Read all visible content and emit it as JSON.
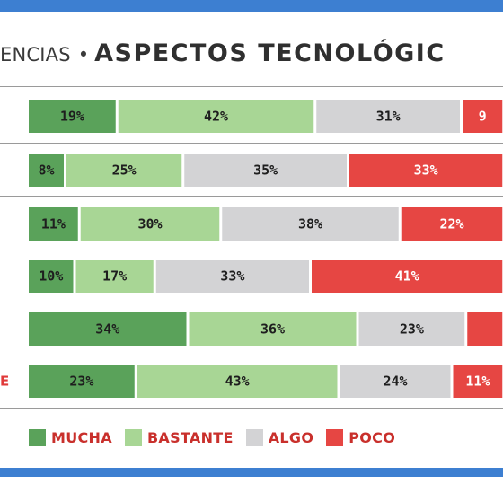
{
  "header": {
    "pre": "ENCIAS",
    "bullet": "•",
    "main": "ASPECTOS TECNOLÓGIC"
  },
  "colors": {
    "frame": "#3d7fd1",
    "mucha": "#5aa25a",
    "bastante": "#a8d695",
    "algo": "#d3d3d5",
    "poco": "#e64643"
  },
  "chart_data": {
    "type": "bar",
    "orientation": "horizontal",
    "stacked": true,
    "grid": false,
    "legend_position": "bottom",
    "categories": [
      "",
      "",
      "",
      "",
      "",
      "E"
    ],
    "series": [
      {
        "name": "MUCHA",
        "color": "#5aa25a",
        "values": [
          19,
          8,
          11,
          10,
          34,
          23
        ],
        "labels": [
          "19%",
          "8%",
          "11%",
          "10%",
          "34%",
          "23%"
        ]
      },
      {
        "name": "BASTANTE",
        "color": "#a8d695",
        "values": [
          42,
          25,
          30,
          17,
          36,
          43
        ],
        "labels": [
          "42%",
          "25%",
          "30%",
          "17%",
          "36%",
          "43%"
        ]
      },
      {
        "name": "ALGO",
        "color": "#d3d3d5",
        "values": [
          31,
          35,
          38,
          33,
          23,
          24
        ],
        "labels": [
          "31%",
          "35%",
          "38%",
          "33%",
          "23%",
          "24%"
        ]
      },
      {
        "name": "POCO",
        "color": "#e64643",
        "values": [
          9,
          33,
          22,
          41,
          8,
          11
        ],
        "labels": [
          "9",
          "33%",
          "22%",
          "41%",
          "",
          "11%"
        ]
      }
    ]
  },
  "legend": {
    "items": [
      {
        "label": "MUCHA",
        "color": "#5aa25a"
      },
      {
        "label": "BASTANTE",
        "color": "#a8d695"
      },
      {
        "label": "ALGO",
        "color": "#d3d3d5"
      },
      {
        "label": "POCO",
        "color": "#e64643"
      }
    ]
  }
}
